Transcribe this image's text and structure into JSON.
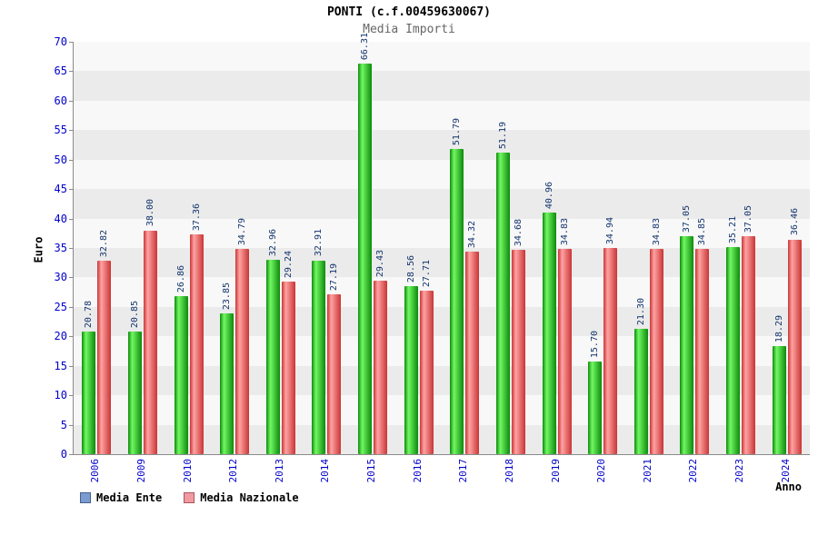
{
  "title": "PONTI (c.f.00459630067)",
  "subtitle": "Media Importi",
  "chart_data": {
    "type": "bar",
    "title": "PONTI (c.f.00459630067)",
    "subtitle": "Media Importi",
    "xlabel": "Anno",
    "ylabel": "Euro",
    "ylim": [
      0,
      70
    ],
    "ytick_step": 5,
    "grid": "horizontal-bands",
    "legend_position": "bottom-left",
    "categories": [
      "2006",
      "2009",
      "2010",
      "2012",
      "2013",
      "2014",
      "2015",
      "2016",
      "2017",
      "2018",
      "2019",
      "2020",
      "2021",
      "2022",
      "2023",
      "2024"
    ],
    "series": [
      {
        "name": "Media Ente",
        "color_dark": "#0c8a0c",
        "color_light": "#72f862",
        "values": [
          "20.78",
          "20.85",
          "26.86",
          "23.85",
          "32.96",
          "32.91",
          "66.31",
          "28.56",
          "51.79",
          "51.19",
          "40.96",
          "15.70",
          "21.30",
          "37.05",
          "35.21",
          "18.29"
        ]
      },
      {
        "name": "Media Nazionale",
        "color_dark": "#c93535",
        "color_light": "#ffa3a3",
        "values": [
          "32.82",
          "38.00",
          "37.36",
          "34.79",
          "29.24",
          "27.19",
          "29.43",
          "27.71",
          "34.32",
          "34.68",
          "34.83",
          "34.94",
          "34.83",
          "34.85",
          "37.05",
          "36.46"
        ]
      }
    ]
  },
  "legend": {
    "items": [
      {
        "label": "Media Ente",
        "swatch": "#7b9cd0",
        "swatch_border": "#44608c"
      },
      {
        "label": "Media Nazionale",
        "swatch": "#f09aa2",
        "swatch_border": "#a85560"
      }
    ]
  },
  "colors": {
    "band_a": "#ebebeb",
    "band_b": "#f8f8f8",
    "axis": "#8a8a8a",
    "tick_label": "#0000cc",
    "value_label": "#14356e"
  }
}
